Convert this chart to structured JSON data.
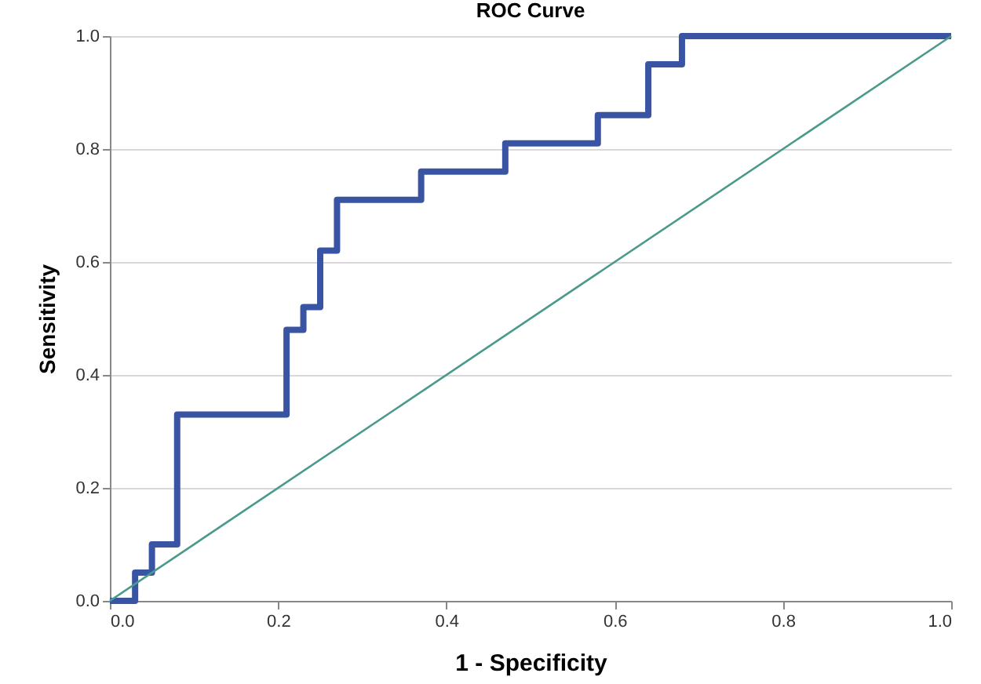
{
  "chart_data": {
    "type": "line",
    "title": "ROC Curve",
    "xlabel": "1 - Specificity",
    "ylabel": "Sensitivity",
    "xlim": [
      0,
      1
    ],
    "ylim": [
      0,
      1
    ],
    "xticks": [
      {
        "value": 0,
        "label": "0.0"
      },
      {
        "value": 0.2,
        "label": "0.2"
      },
      {
        "value": 0.4,
        "label": "0.4"
      },
      {
        "value": 0.6,
        "label": "0.6"
      },
      {
        "value": 0.8,
        "label": "0.8"
      },
      {
        "value": 1,
        "label": "1.0"
      }
    ],
    "yticks": [
      {
        "value": 0,
        "label": "0.0"
      },
      {
        "value": 0.2,
        "label": "0.2"
      },
      {
        "value": 0.4,
        "label": "0.4"
      },
      {
        "value": 0.6,
        "label": "0.6"
      },
      {
        "value": 0.8,
        "label": "0.8"
      },
      {
        "value": 1,
        "label": "1.0"
      }
    ],
    "grid": "y",
    "marker": "none",
    "line_style": "solid",
    "series": [
      {
        "color": "#3a54a4",
        "x": [
          0,
          0.03,
          0.03,
          0.05,
          0.05,
          0.08,
          0.08,
          0.21,
          0.21,
          0.23,
          0.23,
          0.25,
          0.25,
          0.27,
          0.27,
          0.37,
          0.37,
          0.47,
          0.47,
          0.58,
          0.58,
          0.64,
          0.64,
          0.68,
          0.68,
          1
        ],
        "values": [
          0,
          0,
          0.05,
          0.05,
          0.1,
          0.1,
          0.33,
          0.33,
          0.48,
          0.48,
          0.52,
          0.52,
          0.62,
          0.62,
          0.71,
          0.71,
          0.76,
          0.76,
          0.81,
          0.81,
          0.86,
          0.86,
          0.95,
          0.95,
          1,
          1
        ]
      },
      {
        "color": "#4a9a8c",
        "x": [
          0,
          1
        ],
        "values": [
          0,
          1
        ]
      }
    ]
  }
}
